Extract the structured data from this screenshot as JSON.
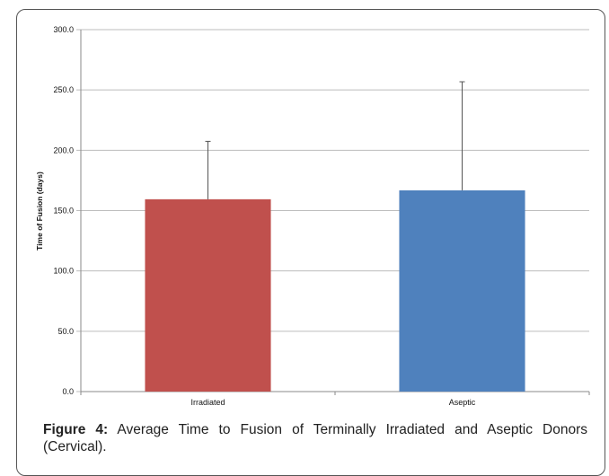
{
  "chart_data": {
    "type": "bar",
    "categories": [
      "Irradiated",
      "Aseptic"
    ],
    "values": [
      159.4,
      166.8
    ],
    "error_bars": [
      48.0,
      90.0
    ],
    "ylabel": "Time of Fusion (days)",
    "xlabel": "",
    "ylim": [
      0,
      300
    ],
    "yticks": [
      0,
      50,
      100,
      150,
      200,
      250,
      300
    ],
    "ytick_labels": [
      "0.0",
      "50.0",
      "100.0",
      "150.0",
      "200.0",
      "250.0",
      "300.0"
    ],
    "grid": true,
    "colors": [
      "#C0504D",
      "#4F81BD"
    ]
  },
  "caption": {
    "label": "Figure 4:",
    "text": " Average Time to Fusion of Terminally Irradiated and Aseptic Donors (Cervical)."
  }
}
